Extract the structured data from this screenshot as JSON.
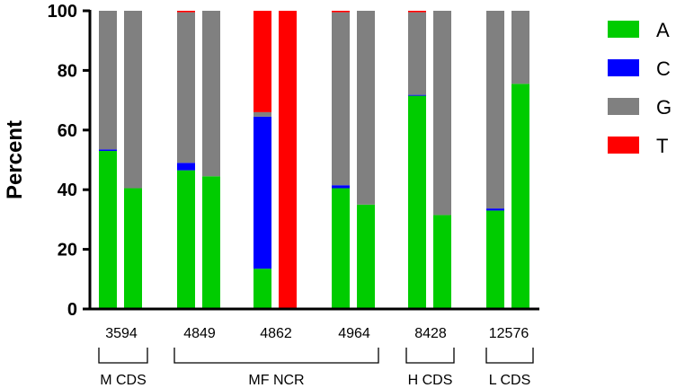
{
  "chart_data": {
    "type": "bar",
    "stacked": true,
    "title": "",
    "xlabel": "",
    "ylabel": "Percent",
    "ylim": [
      0,
      100
    ],
    "yticks": [
      0,
      20,
      40,
      60,
      80,
      100
    ],
    "legend_position": "right",
    "legend": [
      {
        "name": "A",
        "color": "#00cc00"
      },
      {
        "name": "C",
        "color": "#0000ff"
      },
      {
        "name": "G",
        "color": "#808080"
      },
      {
        "name": "T",
        "color": "#ff0000"
      }
    ],
    "categories": [
      "3594",
      "4849",
      "4862",
      "4964",
      "8428",
      "12576"
    ],
    "bars_per_category": 2,
    "series": [
      {
        "name": "A",
        "values": [
          [
            53.0,
            40.5
          ],
          [
            46.5,
            44.5
          ],
          [
            13.5,
            0.0
          ],
          [
            40.5,
            35.0
          ],
          [
            71.5,
            31.5
          ],
          [
            33.0,
            75.5
          ]
        ]
      },
      {
        "name": "C",
        "values": [
          [
            0.5,
            0.0
          ],
          [
            2.5,
            0.0
          ],
          [
            51.0,
            0.0
          ],
          [
            1.0,
            0.0
          ],
          [
            0.3,
            0.0
          ],
          [
            0.7,
            0.0
          ]
        ]
      },
      {
        "name": "G",
        "values": [
          [
            46.5,
            59.5
          ],
          [
            50.5,
            55.5
          ],
          [
            1.5,
            0.0
          ],
          [
            58.0,
            65.0
          ],
          [
            27.7,
            68.5
          ],
          [
            66.3,
            24.5
          ]
        ]
      },
      {
        "name": "T",
        "values": [
          [
            0.0,
            0.0
          ],
          [
            0.5,
            0.0
          ],
          [
            34.0,
            100.0
          ],
          [
            0.5,
            0.0
          ],
          [
            0.5,
            0.0
          ],
          [
            0.0,
            0.0
          ]
        ]
      }
    ],
    "groups": [
      {
        "label": "M CDS",
        "from": "3594",
        "to": "3594"
      },
      {
        "label": "MF NCR",
        "from": "4849",
        "to": "4964"
      },
      {
        "label": "H CDS",
        "from": "8428",
        "to": "8428"
      },
      {
        "label": "L CDS",
        "from": "12576",
        "to": "12576"
      }
    ]
  }
}
